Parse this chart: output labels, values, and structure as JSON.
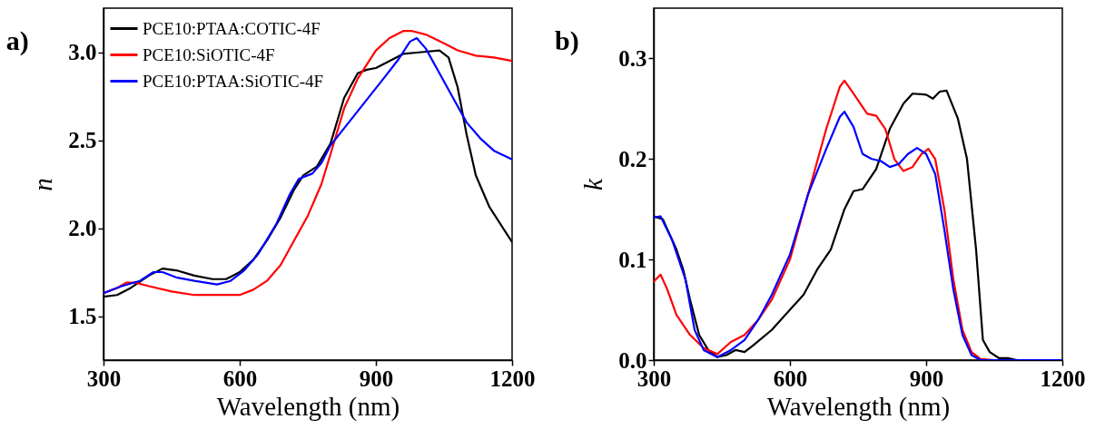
{
  "chart_data": [
    {
      "type": "line",
      "title": "a)",
      "xlabel": "Wavelength (nm)",
      "ylabel": "n",
      "xlim": [
        300,
        1200
      ],
      "xticks": [
        300,
        600,
        900,
        1200
      ],
      "ylim": [
        1.25,
        3.25
      ],
      "yticks": [
        1.5,
        {
          "value": 2,
          "label": "2.0"
        },
        2.5,
        {
          "value": 3,
          "label": "3.0"
        }
      ],
      "legend": "top left",
      "grid": false,
      "line_style": "solid",
      "marker": "none",
      "series": [
        {
          "name": "PCE10:PTAA:COTIC-4F",
          "color": "#000000",
          "x": [
            300,
            330,
            360,
            400,
            430,
            460,
            500,
            540,
            570,
            600,
            630,
            660,
            690,
            720,
            740,
            770,
            800,
            830,
            860,
            880,
            900,
            930,
            960,
            1000,
            1040,
            1060,
            1080,
            1100,
            1120,
            1150,
            1180,
            1200
          ],
          "values": [
            1.61,
            1.62,
            1.66,
            1.73,
            1.77,
            1.76,
            1.73,
            1.71,
            1.71,
            1.75,
            1.82,
            1.93,
            2.06,
            2.22,
            2.3,
            2.35,
            2.48,
            2.74,
            2.88,
            2.9,
            2.91,
            2.95,
            2.99,
            3.0,
            3.01,
            2.97,
            2.8,
            2.53,
            2.3,
            2.12,
            2.0,
            1.92
          ]
        },
        {
          "name": "PCE10:SiOTIC-4F",
          "color": "#ff0000",
          "x": [
            300,
            330,
            350,
            370,
            400,
            450,
            500,
            550,
            600,
            630,
            660,
            690,
            720,
            750,
            780,
            800,
            830,
            860,
            900,
            930,
            960,
            980,
            1010,
            1050,
            1080,
            1120,
            1160,
            1200
          ],
          "values": [
            1.63,
            1.66,
            1.69,
            1.69,
            1.67,
            1.64,
            1.62,
            1.62,
            1.62,
            1.65,
            1.7,
            1.79,
            1.93,
            2.07,
            2.25,
            2.42,
            2.68,
            2.85,
            3.01,
            3.08,
            3.12,
            3.12,
            3.1,
            3.05,
            3.01,
            2.98,
            2.97,
            2.95
          ]
        },
        {
          "name": "PCE10:PTAA:SiOTIC-4F",
          "color": "#0000ff",
          "x": [
            300,
            340,
            380,
            410,
            430,
            460,
            500,
            550,
            580,
            610,
            640,
            680,
            710,
            730,
            760,
            780,
            800,
            840,
            880,
            920,
            950,
            975,
            990,
            1010,
            1040,
            1070,
            1100,
            1130,
            1160,
            1200
          ],
          "values": [
            1.63,
            1.67,
            1.7,
            1.75,
            1.75,
            1.72,
            1.7,
            1.68,
            1.7,
            1.76,
            1.85,
            2.02,
            2.19,
            2.28,
            2.31,
            2.37,
            2.47,
            2.6,
            2.73,
            2.86,
            2.96,
            3.06,
            3.08,
            3.02,
            2.88,
            2.74,
            2.6,
            2.51,
            2.44,
            2.39
          ]
        }
      ]
    },
    {
      "type": "line",
      "title": "b)",
      "xlabel": "Wavelength (nm)",
      "ylabel": "k",
      "xlim": [
        300,
        1200
      ],
      "xticks": [
        300,
        600,
        900,
        1200
      ],
      "ylim": [
        0,
        0.35
      ],
      "yticks": [
        {
          "value": 0,
          "label": "0.0"
        },
        0.1,
        0.2,
        0.3
      ],
      "legend": "top left",
      "grid": false,
      "line_style": "solid",
      "marker": "none",
      "series": [
        {
          "name": "PCE10:PTAA:COTIC-4F",
          "color": "#000000",
          "x": [
            300,
            320,
            350,
            365,
            380,
            400,
            420,
            440,
            460,
            480,
            500,
            520,
            560,
            600,
            630,
            660,
            690,
            720,
            740,
            760,
            790,
            820,
            850,
            870,
            900,
            915,
            930,
            945,
            970,
            990,
            1010,
            1025,
            1040,
            1060,
            1080,
            1100,
            1200
          ],
          "values": [
            0.143,
            0.14,
            0.11,
            0.09,
            0.06,
            0.025,
            0.01,
            0.003,
            0.005,
            0.01,
            0.008,
            0.015,
            0.03,
            0.05,
            0.065,
            0.09,
            0.11,
            0.15,
            0.168,
            0.17,
            0.19,
            0.23,
            0.255,
            0.265,
            0.264,
            0.26,
            0.267,
            0.268,
            0.24,
            0.2,
            0.11,
            0.02,
            0.008,
            0.002,
            0.002,
            0,
            0
          ]
        },
        {
          "name": "PCE10:SiOTIC-4F",
          "color": "#ff0000",
          "x": [
            300,
            315,
            330,
            350,
            380,
            410,
            440,
            470,
            500,
            530,
            560,
            600,
            640,
            680,
            710,
            720,
            740,
            770,
            790,
            810,
            830,
            850,
            870,
            890,
            905,
            920,
            940,
            960,
            980,
            1000,
            1020,
            1050,
            1200
          ],
          "values": [
            0.078,
            0.085,
            0.07,
            0.045,
            0.025,
            0.012,
            0.006,
            0.018,
            0.025,
            0.04,
            0.06,
            0.1,
            0.165,
            0.23,
            0.272,
            0.278,
            0.265,
            0.245,
            0.243,
            0.23,
            0.2,
            0.188,
            0.192,
            0.205,
            0.21,
            0.2,
            0.15,
            0.08,
            0.03,
            0.008,
            0.001,
            0,
            0
          ]
        },
        {
          "name": "PCE10:PTAA:SiOTIC-4F",
          "color": "#0000ff",
          "x": [
            300,
            315,
            340,
            370,
            390,
            410,
            440,
            470,
            500,
            530,
            560,
            600,
            640,
            680,
            710,
            720,
            740,
            760,
            780,
            800,
            820,
            840,
            860,
            880,
            900,
            920,
            940,
            960,
            980,
            1000,
            1020,
            1200
          ],
          "values": [
            0.142,
            0.143,
            0.12,
            0.08,
            0.03,
            0.01,
            0.003,
            0.01,
            0.02,
            0.04,
            0.065,
            0.105,
            0.165,
            0.21,
            0.242,
            0.247,
            0.232,
            0.205,
            0.2,
            0.198,
            0.192,
            0.195,
            0.205,
            0.211,
            0.205,
            0.185,
            0.13,
            0.07,
            0.025,
            0.005,
            0,
            0
          ]
        }
      ]
    }
  ]
}
